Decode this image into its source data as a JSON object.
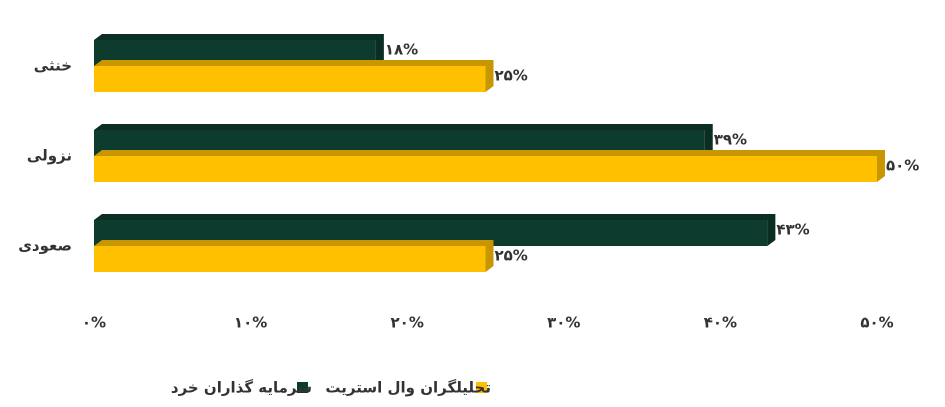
{
  "chart_data": {
    "type": "bar",
    "orientation": "horizontal",
    "categories": [
      "خنثی",
      "نزولی",
      "صعودی"
    ],
    "series": [
      {
        "name": "سرمایه گذاران خرد",
        "color": "#0d3b2e",
        "values": [
          18,
          39,
          43
        ],
        "value_labels": [
          "۱۸%",
          "۳۹%",
          "۴۳%"
        ]
      },
      {
        "name": "تحلیلگران وال استریت",
        "color": "#ffc000",
        "values": [
          25,
          50,
          25
        ],
        "value_labels": [
          "۲۵%",
          "۵۰%",
          "۲۵%"
        ]
      }
    ],
    "xlim": [
      0,
      50
    ],
    "xticks": [
      {
        "value": 0,
        "label": "۰%"
      },
      {
        "value": 10,
        "label": "۱۰%"
      },
      {
        "value": 20,
        "label": "۲۰%"
      },
      {
        "value": 30,
        "label": "۳۰%"
      },
      {
        "value": 40,
        "label": "۴۰%"
      },
      {
        "value": 50,
        "label": "۵۰%"
      }
    ],
    "grid": false,
    "legend": "bottom"
  }
}
